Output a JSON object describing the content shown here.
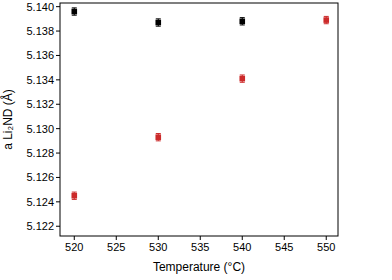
{
  "chart_data": {
    "type": "scatter",
    "x_label": "Temperature (°C)",
    "y_label": "a Li₂ND (Å)",
    "xlim": [
      518.3,
      551.4
    ],
    "ylim": [
      5.1212,
      5.1403
    ],
    "xticks": [
      520,
      525,
      530,
      535,
      540,
      545,
      550
    ],
    "yticks": [
      5.122,
      5.124,
      5.126,
      5.128,
      {
        "value": 5.13,
        "label": "5.130"
      },
      5.132,
      5.134,
      5.136,
      5.138,
      {
        "value": 5.14,
        "label": "5.140"
      }
    ],
    "series": [
      {
        "color": "#000000",
        "marker": "square",
        "x": [
          520,
          530,
          540
        ],
        "values": [
          5.1396,
          5.1387,
          5.1388
        ],
        "errors": [
          0.0003,
          0.0003,
          0.0003
        ]
      },
      {
        "color": "#cc2a2a",
        "marker": "square",
        "x": [
          520,
          530,
          540,
          550
        ],
        "values": [
          5.1245,
          5.1293,
          5.1341,
          5.1389
        ],
        "errors": [
          0.0003,
          0.0003,
          0.0003,
          0.0003
        ]
      }
    ]
  }
}
